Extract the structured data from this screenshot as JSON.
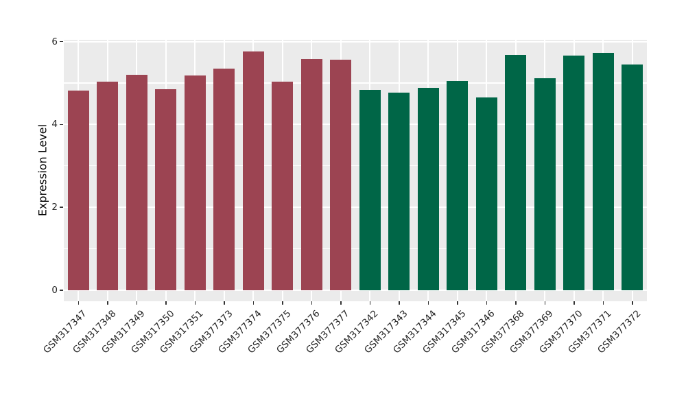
{
  "chart_data": {
    "type": "bar",
    "title": "",
    "xlabel": "",
    "ylabel": "Expression Level",
    "ylim": [
      0,
      6.05
    ],
    "yticks": [
      0,
      2,
      4,
      6
    ],
    "yticks_minor": [
      1,
      3,
      5
    ],
    "grid": "on",
    "legend": "none",
    "panel_background": "#EBEBEB",
    "gridline_color": "#FFFFFF",
    "group_colors": {
      "maroon": "#9C4452",
      "green": "#006647"
    },
    "categories": [
      "GSM317347",
      "GSM317348",
      "GSM317349",
      "GSM317350",
      "GSM317351",
      "GSM377373",
      "GSM377374",
      "GSM377375",
      "GSM377376",
      "GSM377377",
      "GSM317342",
      "GSM317343",
      "GSM317344",
      "GSM317345",
      "GSM317346",
      "GSM377368",
      "GSM377369",
      "GSM377370",
      "GSM377371",
      "GSM377372"
    ],
    "bars": [
      {
        "label": "GSM317347",
        "value": 4.82,
        "group": "maroon"
      },
      {
        "label": "GSM317348",
        "value": 5.04,
        "group": "maroon"
      },
      {
        "label": "GSM317349",
        "value": 5.2,
        "group": "maroon"
      },
      {
        "label": "GSM317350",
        "value": 4.85,
        "group": "maroon"
      },
      {
        "label": "GSM317351",
        "value": 5.19,
        "group": "maroon"
      },
      {
        "label": "GSM377373",
        "value": 5.34,
        "group": "maroon"
      },
      {
        "label": "GSM377374",
        "value": 5.76,
        "group": "maroon"
      },
      {
        "label": "GSM377375",
        "value": 5.03,
        "group": "maroon"
      },
      {
        "label": "GSM377376",
        "value": 5.58,
        "group": "maroon"
      },
      {
        "label": "GSM377377",
        "value": 5.56,
        "group": "maroon"
      },
      {
        "label": "GSM317342",
        "value": 4.84,
        "group": "green"
      },
      {
        "label": "GSM317343",
        "value": 4.77,
        "group": "green"
      },
      {
        "label": "GSM317344",
        "value": 4.89,
        "group": "green"
      },
      {
        "label": "GSM317345",
        "value": 5.05,
        "group": "green"
      },
      {
        "label": "GSM317346",
        "value": 4.65,
        "group": "green"
      },
      {
        "label": "GSM377368",
        "value": 5.68,
        "group": "green"
      },
      {
        "label": "GSM377369",
        "value": 5.12,
        "group": "green"
      },
      {
        "label": "GSM377370",
        "value": 5.66,
        "group": "green"
      },
      {
        "label": "GSM377371",
        "value": 5.73,
        "group": "green"
      },
      {
        "label": "GSM377372",
        "value": 5.44,
        "group": "green"
      }
    ]
  }
}
